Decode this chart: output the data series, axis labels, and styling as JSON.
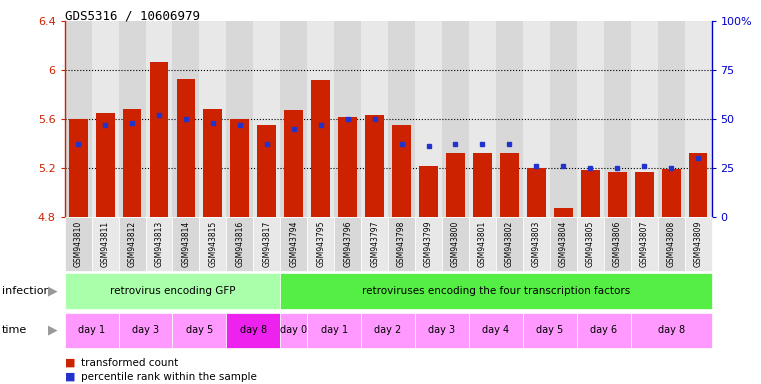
{
  "title": "GDS5316 / 10606979",
  "samples": [
    "GSM943810",
    "GSM943811",
    "GSM943812",
    "GSM943813",
    "GSM943814",
    "GSM943815",
    "GSM943816",
    "GSM943817",
    "GSM943794",
    "GSM943795",
    "GSM943796",
    "GSM943797",
    "GSM943798",
    "GSM943799",
    "GSM943800",
    "GSM943801",
    "GSM943802",
    "GSM943803",
    "GSM943804",
    "GSM943805",
    "GSM943806",
    "GSM943807",
    "GSM943808",
    "GSM943809"
  ],
  "red_values": [
    5.6,
    5.65,
    5.68,
    6.07,
    5.93,
    5.68,
    5.6,
    5.55,
    5.67,
    5.92,
    5.62,
    5.63,
    5.55,
    5.22,
    5.32,
    5.32,
    5.32,
    5.2,
    4.87,
    5.18,
    5.17,
    5.17,
    5.19,
    5.32
  ],
  "blue_pct": [
    37,
    47,
    48,
    52,
    50,
    48,
    47,
    37,
    45,
    47,
    50,
    50,
    37,
    36,
    37,
    37,
    37,
    26,
    26,
    25,
    25,
    26,
    25,
    30
  ],
  "ylim": [
    4.8,
    6.4
  ],
  "yticks": [
    4.8,
    5.2,
    5.6,
    6.0,
    6.4
  ],
  "ytick_labels": [
    "4.8",
    "5.2",
    "5.6",
    "6",
    "6.4"
  ],
  "right_yticks": [
    0,
    25,
    50,
    75,
    100
  ],
  "right_ytick_labels": [
    "0",
    "25",
    "50",
    "75",
    "100%"
  ],
  "bar_color": "#CC2200",
  "dot_color": "#2233CC",
  "bar_bottom": 4.8,
  "infection_groups": [
    {
      "label": "retrovirus encoding GFP",
      "start": 0,
      "end": 8,
      "color": "#AAFFAA"
    },
    {
      "label": "retroviruses encoding the four transcription factors",
      "start": 8,
      "end": 24,
      "color": "#55EE44"
    }
  ],
  "time_groups": [
    {
      "label": "day 1",
      "start": 0,
      "end": 2,
      "color": "#FF99FF"
    },
    {
      "label": "day 3",
      "start": 2,
      "end": 4,
      "color": "#FF99FF"
    },
    {
      "label": "day 5",
      "start": 4,
      "end": 6,
      "color": "#FF99FF"
    },
    {
      "label": "day 8",
      "start": 6,
      "end": 8,
      "color": "#EE22EE"
    },
    {
      "label": "day 0",
      "start": 8,
      "end": 9,
      "color": "#FF99FF"
    },
    {
      "label": "day 1",
      "start": 9,
      "end": 11,
      "color": "#FF99FF"
    },
    {
      "label": "day 2",
      "start": 11,
      "end": 13,
      "color": "#FF99FF"
    },
    {
      "label": "day 3",
      "start": 13,
      "end": 15,
      "color": "#FF99FF"
    },
    {
      "label": "day 4",
      "start": 15,
      "end": 17,
      "color": "#FF99FF"
    },
    {
      "label": "day 5",
      "start": 17,
      "end": 19,
      "color": "#FF99FF"
    },
    {
      "label": "day 6",
      "start": 19,
      "end": 21,
      "color": "#FF99FF"
    },
    {
      "label": "day 8",
      "start": 21,
      "end": 24,
      "color": "#FF99FF"
    }
  ],
  "legend_items": [
    {
      "label": "transformed count",
      "color": "#CC2200"
    },
    {
      "label": "percentile rank within the sample",
      "color": "#2233CC"
    }
  ],
  "left_axis_color": "#CC2200",
  "right_axis_color": "#0000CC",
  "gridline_color": "#000000",
  "sample_box_colors": [
    "#D8D8D8",
    "#E8E8E8"
  ]
}
